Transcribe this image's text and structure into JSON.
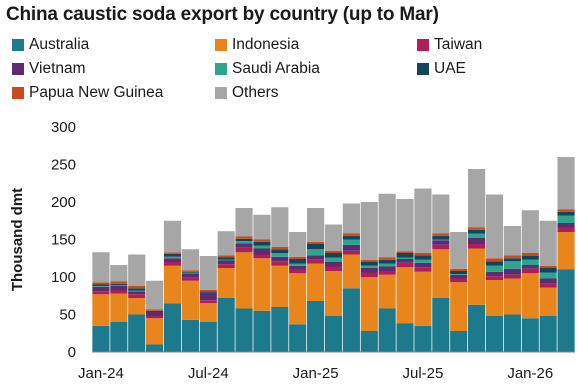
{
  "chart_data": {
    "type": "bar",
    "stacked": true,
    "title": "China caustic soda export by country (up to Mar)",
    "ylabel": "Thousand dmt",
    "xlabel": "",
    "ylim": [
      0,
      300
    ],
    "yticks": [
      0,
      50,
      100,
      150,
      200,
      250,
      300
    ],
    "grid": false,
    "legend_position": "top",
    "x_tick_labels": [
      {
        "index": 0,
        "label": "Jan-24"
      },
      {
        "index": 6,
        "label": "Jul-24"
      },
      {
        "index": 12,
        "label": "Jan-25"
      },
      {
        "index": 18,
        "label": "Jul-25"
      },
      {
        "index": 24,
        "label": "Jan-26"
      }
    ],
    "categories": [
      "Jan-24",
      "Feb-24",
      "Mar-24",
      "Apr-24",
      "May-24",
      "Jun-24",
      "Jul-24",
      "Aug-24",
      "Sep-24",
      "Oct-24",
      "Nov-24",
      "Dec-24",
      "Jan-25",
      "Feb-25",
      "Mar-25",
      "Apr-25",
      "May-25",
      "Jun-25",
      "Jul-25",
      "Aug-25",
      "Sep-25",
      "Oct-25",
      "Nov-25",
      "Dec-25",
      "Jan-26",
      "Feb-26",
      "Mar-26"
    ],
    "series": [
      {
        "name": "Australia",
        "color": "#1d7a8c",
        "values": [
          35,
          40,
          50,
          10,
          65,
          43,
          40,
          72,
          58,
          55,
          60,
          37,
          68,
          48,
          85,
          28,
          58,
          38,
          35,
          72,
          28,
          63,
          48,
          50,
          45,
          48,
          110
        ]
      },
      {
        "name": "Indonesia",
        "color": "#e8851c",
        "values": [
          42,
          38,
          22,
          35,
          50,
          52,
          25,
          40,
          75,
          70,
          55,
          68,
          50,
          60,
          45,
          72,
          45,
          75,
          72,
          65,
          65,
          75,
          48,
          48,
          60,
          38,
          50
        ]
      },
      {
        "name": "Taiwan",
        "color": "#b01e5a",
        "values": [
          4,
          4,
          5,
          3,
          5,
          4,
          4,
          5,
          6,
          5,
          6,
          5,
          5,
          6,
          5,
          6,
          5,
          6,
          6,
          6,
          5,
          6,
          5,
          5,
          6,
          5,
          6
        ]
      },
      {
        "name": "Vietnam",
        "color": "#5b2c6f",
        "values": [
          6,
          6,
          4,
          6,
          5,
          6,
          10,
          5,
          6,
          8,
          6,
          5,
          6,
          6,
          8,
          6,
          6,
          5,
          6,
          6,
          5,
          8,
          6,
          8,
          5,
          7,
          6
        ]
      },
      {
        "name": "Saudi Arabia",
        "color": "#2ea58c",
        "values": [
          1,
          1,
          1,
          0,
          2,
          1,
          0,
          1,
          3,
          4,
          5,
          3,
          8,
          6,
          7,
          3,
          4,
          2,
          4,
          1,
          1,
          6,
          8,
          10,
          7,
          8,
          10
        ]
      },
      {
        "name": "UAE",
        "color": "#12455a",
        "values": [
          2,
          2,
          3,
          1,
          4,
          1,
          2,
          3,
          3,
          5,
          5,
          6,
          7,
          6,
          5,
          5,
          5,
          6,
          6,
          5,
          4,
          5,
          6,
          4,
          5,
          6,
          5
        ]
      },
      {
        "name": "Papua New Guinea",
        "color": "#c94a1a",
        "values": [
          3,
          3,
          3,
          2,
          2,
          2,
          2,
          3,
          3,
          3,
          3,
          3,
          3,
          3,
          3,
          3,
          3,
          2,
          3,
          3,
          3,
          3,
          4,
          4,
          4,
          3,
          3
        ]
      },
      {
        "name": "Others",
        "color": "#a6a6a6",
        "values": [
          40,
          22,
          42,
          38,
          42,
          28,
          45,
          32,
          38,
          33,
          53,
          33,
          45,
          35,
          40,
          77,
          85,
          70,
          86,
          52,
          49,
          78,
          85,
          39,
          57,
          60,
          70
        ]
      }
    ]
  }
}
